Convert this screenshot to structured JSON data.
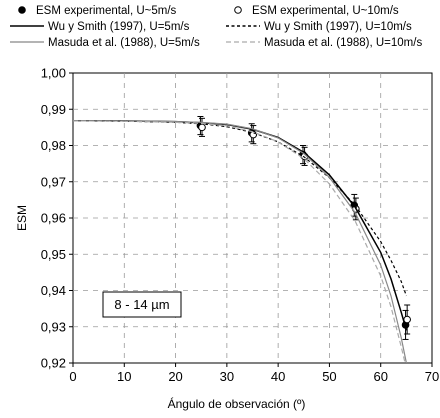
{
  "chart_data": {
    "type": "line",
    "xlabel": "Ángulo de observación (º)",
    "ylabel": "ESM",
    "xlim": [
      0,
      70
    ],
    "ylim": [
      0.92,
      1.0
    ],
    "x_ticks": [
      "0",
      "10",
      "20",
      "30",
      "40",
      "50",
      "60",
      "70"
    ],
    "y_ticks": [
      "0,92",
      "0,93",
      "0,94",
      "0,95",
      "0,96",
      "0,97",
      "0,98",
      "0,99",
      "1,00"
    ],
    "grid": true,
    "legend_position": "top",
    "annotation": "8 - 14 µm",
    "series": [
      {
        "name": "ESM experimental, U~5m/s",
        "kind": "points",
        "marker": "filled-circle",
        "color": "#000000",
        "x": [
          25,
          35,
          45,
          55,
          65
        ],
        "y": [
          0.9855,
          0.9835,
          0.9775,
          0.9635,
          0.9305
        ],
        "err": [
          0.0025,
          0.0025,
          0.0025,
          0.003,
          0.004
        ]
      },
      {
        "name": "ESM experimental, U~10m/s",
        "kind": "points",
        "marker": "open-circle",
        "color": "#000000",
        "x": [
          25,
          35,
          45,
          55,
          65
        ],
        "y": [
          0.985,
          0.983,
          0.977,
          0.9625,
          0.932
        ],
        "err": [
          0.0025,
          0.0025,
          0.0025,
          0.003,
          0.004
        ]
      },
      {
        "name": "Wu y Smith (1997), U=5m/s",
        "kind": "line",
        "style": "solid",
        "color": "#000000",
        "x": [
          0,
          10,
          20,
          25,
          30,
          35,
          40,
          45,
          50,
          55,
          60,
          62,
          64,
          65
        ],
        "y": [
          0.9868,
          0.9868,
          0.9866,
          0.9863,
          0.9858,
          0.9845,
          0.9822,
          0.9781,
          0.9719,
          0.963,
          0.9505,
          0.9432,
          0.934,
          0.929
        ]
      },
      {
        "name": "Wu y Smith (1997), U=10m/s",
        "kind": "line",
        "style": "dotted",
        "color": "#000000",
        "x": [
          0,
          10,
          20,
          25,
          30,
          35,
          40,
          45,
          50,
          55,
          60,
          62,
          64,
          65
        ],
        "y": [
          0.9868,
          0.9867,
          0.9864,
          0.986,
          0.9852,
          0.9836,
          0.981,
          0.9769,
          0.9711,
          0.9635,
          0.9535,
          0.9483,
          0.9425,
          0.9385
        ]
      },
      {
        "name": "Masuda et al. (1988), U=5m/s",
        "kind": "line",
        "style": "solid",
        "color": "#888888",
        "x": [
          0,
          10,
          20,
          25,
          30,
          35,
          40,
          45,
          50,
          55,
          60,
          62,
          64,
          65
        ],
        "y": [
          0.9868,
          0.9868,
          0.9866,
          0.9864,
          0.9859,
          0.9846,
          0.9821,
          0.9778,
          0.9712,
          0.9615,
          0.947,
          0.9385,
          0.927,
          0.92
        ]
      },
      {
        "name": "Masuda et al. (1988), U=10m/s",
        "kind": "line",
        "style": "dashed",
        "color": "#aaaaaa",
        "x": [
          0,
          10,
          20,
          25,
          30,
          35,
          40,
          45,
          50,
          55,
          60,
          62,
          64,
          65
        ],
        "y": [
          0.9868,
          0.9867,
          0.9864,
          0.9861,
          0.9854,
          0.9838,
          0.981,
          0.9764,
          0.9694,
          0.9592,
          0.944,
          0.9355,
          0.9245,
          0.9185
        ]
      }
    ]
  }
}
